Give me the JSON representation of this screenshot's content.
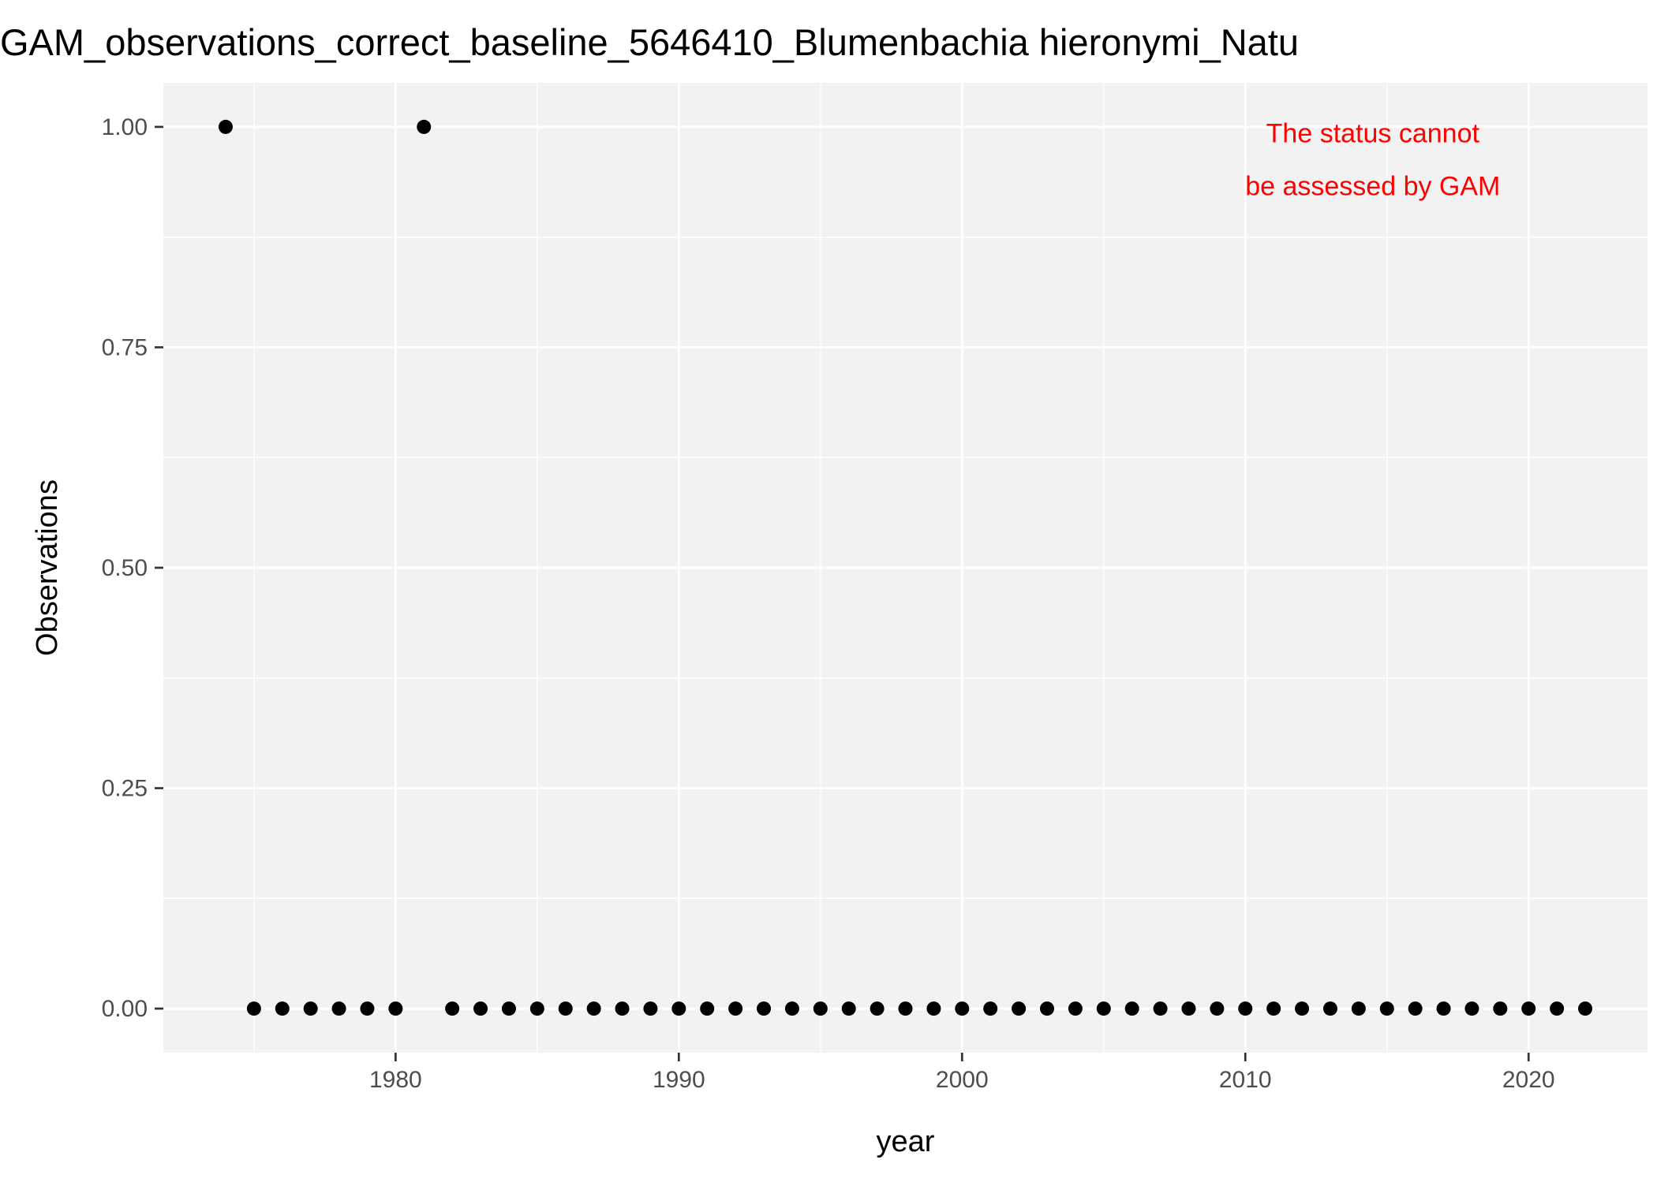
{
  "chart_data": {
    "type": "scatter",
    "title": "GAM_observations_correct_baseline_5646410_Blumenbachia hieronymi_Natu",
    "xlabel": "year",
    "ylabel": "Observations",
    "xlim": [
      1971.8,
      2024.2
    ],
    "ylim": [
      -0.05,
      1.05
    ],
    "x_ticks": [
      1980,
      1990,
      2000,
      2010,
      2020
    ],
    "x_tick_labels": [
      "1980",
      "1990",
      "2000",
      "2010",
      "2020"
    ],
    "y_ticks": [
      0,
      0.25,
      0.5,
      0.75,
      1
    ],
    "y_tick_labels": [
      "0.00",
      "0.25",
      "0.50",
      "0.75",
      "1.00"
    ],
    "grid": true,
    "annotation": {
      "lines": [
        "The status cannot",
        "be assessed by GAM"
      ],
      "color": "#ff0000",
      "x": 2014.5,
      "y": 0.96
    },
    "colors": {
      "panel_background": "#f2f2f2",
      "grid": "#ffffff",
      "points": "#000000"
    },
    "series": [
      {
        "x": [
          1974,
          1975,
          1976,
          1977,
          1978,
          1979,
          1980,
          1981,
          1982,
          1983,
          1984,
          1985,
          1986,
          1987,
          1988,
          1989,
          1990,
          1991,
          1992,
          1993,
          1994,
          1995,
          1996,
          1997,
          1998,
          1999,
          2000,
          2001,
          2002,
          2003,
          2004,
          2005,
          2006,
          2007,
          2008,
          2009,
          2010,
          2011,
          2012,
          2013,
          2014,
          2015,
          2016,
          2017,
          2018,
          2019,
          2020,
          2021,
          2022
        ],
        "y": [
          1,
          0,
          0,
          0,
          0,
          0,
          0,
          1,
          0,
          0,
          0,
          0,
          0,
          0,
          0,
          0,
          0,
          0,
          0,
          0,
          0,
          0,
          0,
          0,
          0,
          0,
          0,
          0,
          0,
          0,
          0,
          0,
          0,
          0,
          0,
          0,
          0,
          0,
          0,
          0,
          0,
          0,
          0,
          0,
          0,
          0,
          0,
          0,
          0
        ]
      }
    ]
  }
}
